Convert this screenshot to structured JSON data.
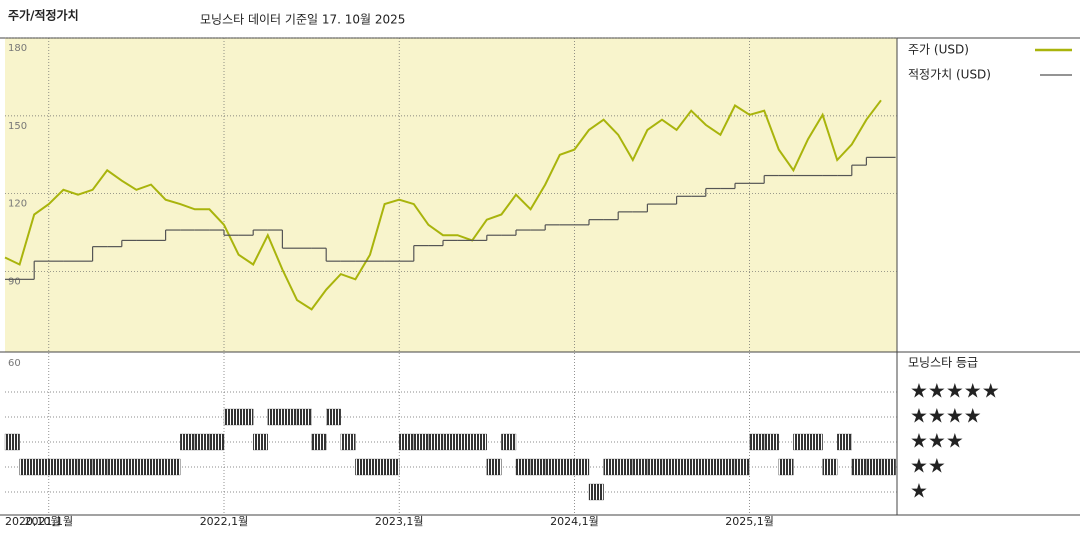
{
  "chart_data": {
    "type": "line",
    "title": "주가/적정가치",
    "subtitle": "모닝스타 데이터 기준일 17. 10월 2025",
    "x": [
      "2020-10",
      "2020-11",
      "2020-12",
      "2021-01",
      "2021-02",
      "2021-03",
      "2021-04",
      "2021-05",
      "2021-06",
      "2021-07",
      "2021-08",
      "2021-09",
      "2021-10",
      "2021-11",
      "2021-12",
      "2022-01",
      "2022-02",
      "2022-03",
      "2022-04",
      "2022-05",
      "2022-06",
      "2022-07",
      "2022-08",
      "2022-09",
      "2022-10",
      "2022-11",
      "2022-12",
      "2023-01",
      "2023-02",
      "2023-03",
      "2023-04",
      "2023-05",
      "2023-06",
      "2023-07",
      "2023-08",
      "2023-09",
      "2023-10",
      "2023-11",
      "2023-12",
      "2024-01",
      "2024-02",
      "2024-03",
      "2024-04",
      "2024-05",
      "2024-06",
      "2024-07",
      "2024-08",
      "2024-09",
      "2024-10",
      "2024-11",
      "2024-12",
      "2025-01",
      "2025-02",
      "2025-03",
      "2025-04",
      "2025-05",
      "2025-06",
      "2025-07",
      "2025-08",
      "2025-09",
      "2025-10"
    ],
    "xticks": [
      {
        "value": "2020-10",
        "label": "2020,10월"
      },
      {
        "value": "2021-01",
        "label": "2021,1월"
      },
      {
        "value": "2022-01",
        "label": "2022,1월"
      },
      {
        "value": "2023-01",
        "label": "2023,1월"
      },
      {
        "value": "2024-01",
        "label": "2024,1월"
      },
      {
        "value": "2025-01",
        "label": "2025,1월"
      }
    ],
    "ylim": [
      59,
      180
    ],
    "yticks": [
      90,
      120,
      150,
      180
    ],
    "grid": true,
    "background": "#f8f4cc",
    "series": [
      {
        "name": "주가 (USD)",
        "color": "#a9b40c",
        "step": false,
        "values": [
          95.4,
          92.7,
          112,
          116,
          121.5,
          119.6,
          121.5,
          129,
          125,
          121.5,
          123.5,
          117.7,
          116,
          114,
          114,
          108,
          96.5,
          92.7,
          104,
          90.8,
          79,
          75.4,
          83,
          89,
          87,
          96.5,
          116,
          117.7,
          116,
          108,
          104,
          104,
          102,
          110,
          112,
          119.6,
          114,
          123.5,
          135,
          137,
          144.6,
          148.5,
          142.7,
          133,
          144.6,
          148.5,
          144.6,
          152,
          146.5,
          142.7,
          154,
          150.4,
          152,
          137,
          129,
          141,
          150.4,
          133,
          139,
          148.5,
          156
        ]
      },
      {
        "name": "적정가치 (USD)",
        "color": "#555555",
        "step": true,
        "values": [
          87,
          87,
          94,
          94,
          94,
          94,
          99.6,
          99.6,
          102,
          102,
          102,
          106,
          106,
          106,
          106,
          104,
          104,
          106,
          106,
          99,
          99,
          99,
          94,
          94,
          94,
          94,
          94,
          94,
          100,
          100,
          102,
          102,
          102,
          104,
          104,
          106,
          106,
          108,
          108,
          108,
          110,
          110,
          113,
          113,
          116,
          116,
          119,
          119,
          122,
          122,
          124,
          124,
          127,
          127,
          127,
          127,
          127,
          127,
          131,
          134,
          134
        ]
      }
    ],
    "rating": {
      "title": "모닝스타 등급",
      "axis_label": "60",
      "color": "#333333",
      "level_labels": [
        "★",
        "★★",
        "★★★",
        "★★★★",
        "★★★★★"
      ],
      "values": [
        3,
        2,
        2,
        2,
        2,
        2,
        2,
        2,
        2,
        2,
        2,
        2,
        3,
        3,
        3,
        4,
        4,
        3,
        4,
        4,
        4,
        3,
        4,
        3,
        2,
        2,
        2,
        3,
        3,
        3,
        3,
        3,
        3,
        2,
        3,
        2,
        2,
        2,
        2,
        2,
        1,
        2,
        2,
        2,
        2,
        2,
        2,
        2,
        2,
        2,
        2,
        3,
        3,
        2,
        3,
        3,
        2,
        3,
        2,
        2,
        2
      ]
    }
  }
}
